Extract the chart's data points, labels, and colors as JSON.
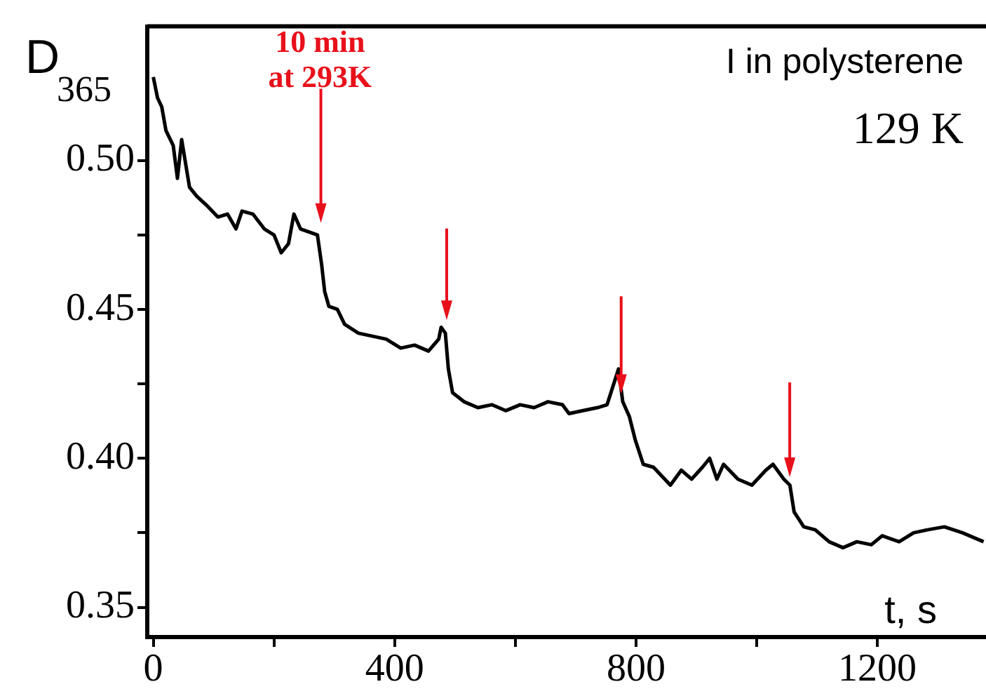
{
  "chart_data": {
    "type": "line",
    "ylabel": "D$_{365}$",
    "xlabel": "t, s",
    "annotations": [
      "10 min at 293K",
      "I in polysterene",
      "129 K"
    ],
    "series": [
      {
        "color": "#000000",
        "x": [
          0,
          7,
          14,
          21,
          33,
          40,
          47,
          60,
          72,
          88,
          107,
          123,
          137,
          147,
          165,
          184,
          200,
          212,
          224,
          233,
          244,
          258,
          272,
          279,
          284,
          291,
          305,
          317,
          340,
          363,
          386,
          410,
          433,
          456,
          473,
          477,
          484,
          489,
          496,
          515,
          538,
          561,
          584,
          608,
          631,
          654,
          678,
          689,
          712,
          736,
          752,
          771,
          778,
          789,
          799,
          812,
          829,
          857,
          875,
          892,
          910,
          922,
          934,
          945,
          969,
          992,
          1015,
          1027,
          1045,
          1055,
          1062,
          1078,
          1097,
          1120,
          1143,
          1166,
          1190,
          1208,
          1236,
          1260,
          1283,
          1311,
          1341,
          1376
        ],
        "values": [
          0.528,
          0.521,
          0.518,
          0.51,
          0.505,
          0.494,
          0.507,
          0.491,
          0.488,
          0.485,
          0.481,
          0.482,
          0.477,
          0.483,
          0.482,
          0.477,
          0.475,
          0.469,
          0.472,
          0.482,
          0.477,
          0.476,
          0.475,
          0.465,
          0.456,
          0.451,
          0.45,
          0.445,
          0.442,
          0.441,
          0.44,
          0.437,
          0.438,
          0.436,
          0.44,
          0.444,
          0.442,
          0.43,
          0.422,
          0.419,
          0.417,
          0.418,
          0.416,
          0.418,
          0.417,
          0.419,
          0.418,
          0.415,
          0.416,
          0.417,
          0.418,
          0.43,
          0.419,
          0.414,
          0.406,
          0.398,
          0.397,
          0.391,
          0.396,
          0.393,
          0.397,
          0.4,
          0.393,
          0.398,
          0.393,
          0.391,
          0.396,
          0.398,
          0.393,
          0.391,
          0.382,
          0.377,
          0.376,
          0.372,
          0.37,
          0.372,
          0.371,
          0.374,
          0.372,
          0.375,
          0.376,
          0.377,
          0.375,
          0.372
        ]
      }
    ],
    "xlim": [
      -10,
      1380
    ],
    "xticks": [
      0,
      {
        "value": 200,
        "label": null
      },
      400,
      {
        "value": 600,
        "label": null
      },
      800,
      {
        "value": 1000,
        "label": null
      },
      1200
    ],
    "ylim": [
      0.34,
      0.545
    ],
    "yticks": [
      {
        "value": 0.35,
        "label": "0.35"
      },
      {
        "value": 0.375,
        "label": null
      },
      {
        "value": 0.4,
        "label": "0.40"
      },
      {
        "value": 0.425,
        "label": null
      },
      {
        "value": 0.45,
        "label": "0.45"
      },
      {
        "value": 0.475,
        "label": null
      },
      {
        "value": 0.5,
        "label": "0.50"
      }
    ],
    "grid": false,
    "legend": false,
    "marker": "none",
    "line_style": "solid"
  }
}
